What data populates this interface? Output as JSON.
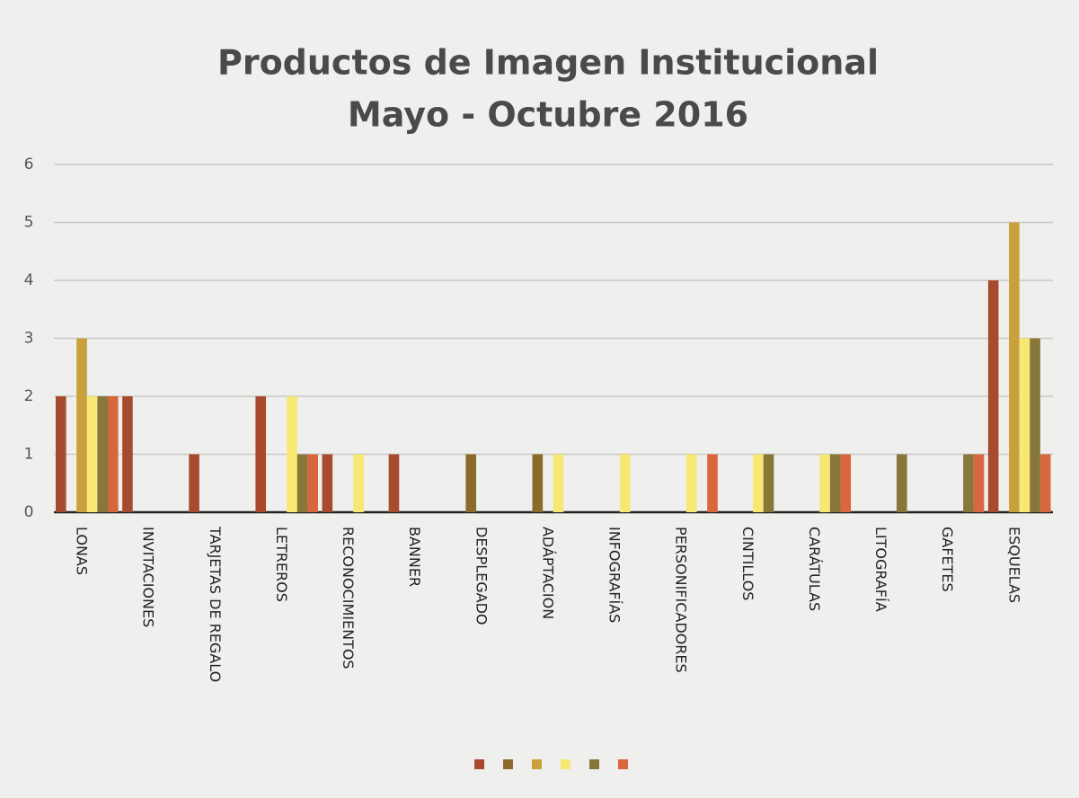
{
  "chart_data": {
    "type": "bar",
    "title": "Productos de Imagen Institucional",
    "subtitle": "Mayo - Octubre 2016",
    "categories": [
      "LONAS",
      "INVITACIONES",
      "TARJETAS DE REGALO",
      "LETREROS",
      "RECONOCIMIENTOS",
      "BANNER",
      "DESPLEGADO",
      "ADÁPTACION",
      "INFOGRAFÍAS",
      "PERSONIFICADORES",
      "CINTILLOS",
      "CARÁTULAS",
      "LITOGRAFÍA",
      "GAFETES",
      "ESQUELAS"
    ],
    "series": [
      {
        "color": "#a84a2e",
        "values": [
          2,
          2,
          1,
          2,
          1,
          1,
          0,
          0,
          0,
          0,
          0,
          0,
          0,
          0,
          4
        ]
      },
      {
        "color": "#8c6a2c",
        "values": [
          0,
          0,
          0,
          0,
          0,
          0,
          1,
          1,
          0,
          0,
          0,
          0,
          0,
          0,
          0
        ]
      },
      {
        "color": "#c9a13a",
        "values": [
          3,
          0,
          0,
          0,
          0,
          0,
          0,
          0,
          0,
          0,
          0,
          0,
          0,
          0,
          5
        ]
      },
      {
        "color": "#f6e873",
        "values": [
          2,
          0,
          0,
          2,
          1,
          0,
          0,
          1,
          1,
          1,
          1,
          1,
          0,
          0,
          3
        ]
      },
      {
        "color": "#87773a",
        "values": [
          2,
          0,
          0,
          1,
          0,
          0,
          0,
          0,
          0,
          0,
          1,
          1,
          1,
          1,
          3
        ]
      },
      {
        "color": "#d8663e",
        "values": [
          2,
          0,
          0,
          1,
          0,
          0,
          0,
          0,
          0,
          1,
          0,
          1,
          0,
          1,
          1
        ]
      }
    ],
    "ylim": [
      0,
      6
    ],
    "yticks": [
      0,
      1,
      2,
      3,
      4,
      5,
      6
    ],
    "grid": true,
    "legend": "bottom"
  }
}
